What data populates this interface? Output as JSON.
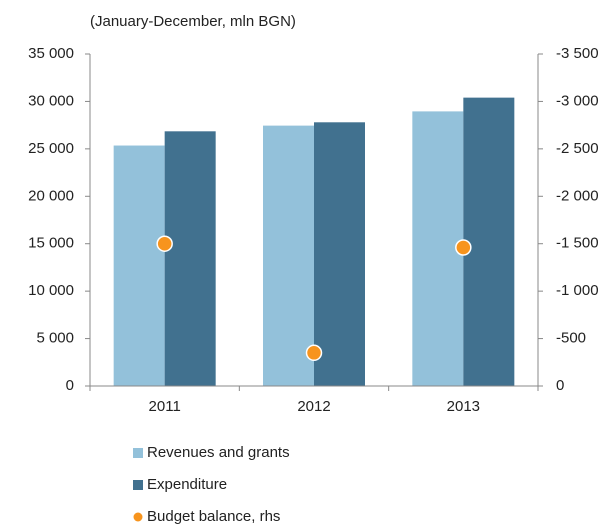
{
  "chart_data": {
    "type": "bar",
    "subtitle": "(January-December, mln BGN)",
    "categories": [
      "2011",
      "2012",
      "2013"
    ],
    "series": [
      {
        "name": "Revenues and grants",
        "color": "#93c1da",
        "values": [
          25350,
          27450,
          28950
        ]
      },
      {
        "name": "Expenditure",
        "color": "#41718f",
        "values": [
          26850,
          27800,
          30400
        ]
      },
      {
        "name": "Budget balance, rhs",
        "color": "#f7941d",
        "type": "scatter",
        "axis": "y2",
        "values": [
          -1500,
          -350,
          -1460
        ]
      }
    ],
    "ylim": [
      0,
      35000
    ],
    "yticks": [
      0,
      {
        "value": 5000,
        "label": "5 000"
      },
      {
        "value": 10000,
        "label": "10 000"
      },
      {
        "value": 15000,
        "label": "15 000"
      },
      {
        "value": 20000,
        "label": "20 000"
      },
      {
        "value": 25000,
        "label": "25 000"
      },
      {
        "value": 30000,
        "label": "30 000"
      },
      {
        "value": 35000,
        "label": "35 000"
      }
    ],
    "y2lim": [
      0,
      -3500
    ],
    "y2ticks": [
      0,
      -500,
      {
        "value": -1000,
        "label": "-1 000"
      },
      {
        "value": -1500,
        "label": "-1 500"
      },
      {
        "value": -2000,
        "label": "-2 000"
      },
      {
        "value": -2500,
        "label": "-2 500"
      },
      {
        "value": -3000,
        "label": "-3 000"
      },
      {
        "value": -3500,
        "label": "-3 500"
      }
    ],
    "grid": false,
    "legend": "bottom"
  }
}
